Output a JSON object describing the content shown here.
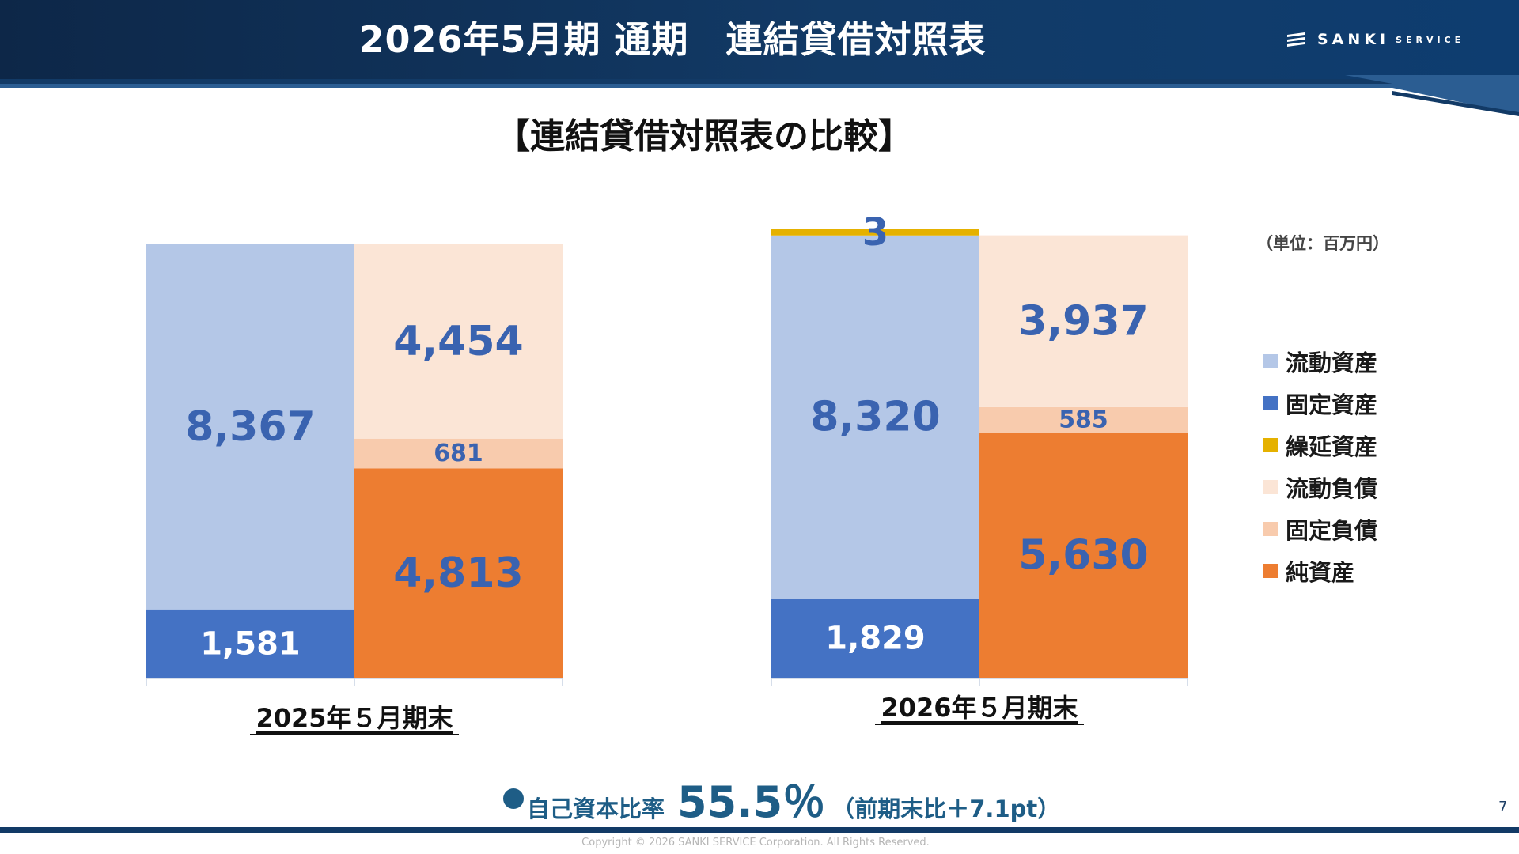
{
  "header": {
    "title": "2026年5月期 通期　連結貸借対照表"
  },
  "logo": {
    "text": "SANKI",
    "sub": "SERVICE"
  },
  "subtitle": "【連結貸借対照表の比較】",
  "unit_label": "（単位：百万円）",
  "chart_data": {
    "type": "bar",
    "stacked": true,
    "categories": [
      "2025年５月期末",
      "2026年５月期末"
    ],
    "columns": [
      {
        "period": "2025年５月期末",
        "assets": [
          {
            "key": "fixed_assets",
            "value": 1581,
            "label": "1,581"
          },
          {
            "key": "current_assets",
            "value": 8367,
            "label": "8,367"
          },
          {
            "key": "deferred_assets",
            "value": 0,
            "label": ""
          }
        ],
        "liabilities": [
          {
            "key": "net_assets",
            "value": 4813,
            "label": "4,813"
          },
          {
            "key": "fixed_liabilities",
            "value": 681,
            "label": "681"
          },
          {
            "key": "current_liabilities",
            "value": 4454,
            "label": "4,454"
          }
        ]
      },
      {
        "period": "2026年５月期末",
        "assets": [
          {
            "key": "fixed_assets",
            "value": 1829,
            "label": "1,829"
          },
          {
            "key": "current_assets",
            "value": 8320,
            "label": "8,320"
          },
          {
            "key": "deferred_assets",
            "value": 3,
            "label": "3"
          }
        ],
        "liabilities": [
          {
            "key": "net_assets",
            "value": 5630,
            "label": "5,630"
          },
          {
            "key": "fixed_liabilities",
            "value": 585,
            "label": "585"
          },
          {
            "key": "current_liabilities",
            "value": 3937,
            "label": "3,937"
          }
        ]
      }
    ],
    "legend": [
      {
        "key": "current_assets",
        "name": "流動資産",
        "color": "#b4c7e7"
      },
      {
        "key": "fixed_assets",
        "name": "固定資産",
        "color": "#4472c4"
      },
      {
        "key": "deferred_assets",
        "name": "繰延資産",
        "color": "#e5b100"
      },
      {
        "key": "current_liabilities",
        "name": "流動負債",
        "color": "#fbe5d6"
      },
      {
        "key": "fixed_liabilities",
        "name": "固定負債",
        "color": "#f8cbad"
      },
      {
        "key": "net_assets",
        "name": "純資産",
        "color": "#ed7d31"
      }
    ],
    "legend_position": "right",
    "grid": false
  },
  "equity_ratio": {
    "label": "自己資本比率",
    "value": "55.5％",
    "note": "（前期末比＋7.1pt）"
  },
  "page_number": "7",
  "copyright": "Copyright © 2026 SANKI SERVICE Corporation. All Rights Reserved.",
  "colors": {
    "navy": "#123a66",
    "ratio_text": "#1e5d86",
    "value_text": "#3a63b0"
  }
}
